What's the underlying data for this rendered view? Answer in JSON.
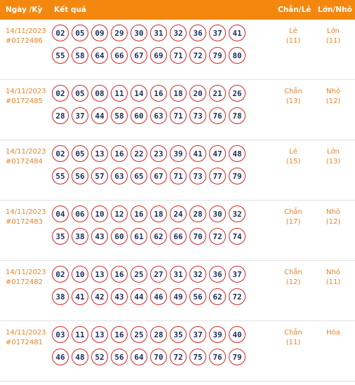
{
  "header": {
    "ky": "Ngày /Kỳ",
    "ket_qua": "Kết quả",
    "chan_le": "Chẵn/Lẻ",
    "lon_nho": "Lớn/Nhỏ"
  },
  "rows": [
    {
      "date": "14/11/2023",
      "draw": "#0172486",
      "balls": [
        "02",
        "05",
        "09",
        "29",
        "30",
        "31",
        "32",
        "36",
        "37",
        "41",
        "55",
        "58",
        "64",
        "66",
        "67",
        "69",
        "71",
        "72",
        "79",
        "80"
      ],
      "chan_le": "Lẻ",
      "chan_le_count": "(11)",
      "lon_nho": "Lớn",
      "lon_nho_count": "(11)"
    },
    {
      "date": "14/11/2023",
      "draw": "#0172485",
      "balls": [
        "02",
        "05",
        "08",
        "11",
        "14",
        "16",
        "18",
        "20",
        "21",
        "26",
        "28",
        "37",
        "44",
        "58",
        "60",
        "63",
        "71",
        "73",
        "76",
        "78"
      ],
      "chan_le": "Chẵn",
      "chan_le_count": "(13)",
      "lon_nho": "Nhỏ",
      "lon_nho_count": "(12)"
    },
    {
      "date": "14/11/2023",
      "draw": "#0172484",
      "balls": [
        "02",
        "05",
        "13",
        "16",
        "22",
        "23",
        "39",
        "41",
        "47",
        "48",
        "55",
        "56",
        "57",
        "63",
        "65",
        "67",
        "71",
        "73",
        "77",
        "79"
      ],
      "chan_le": "Lẻ",
      "chan_le_count": "(15)",
      "lon_nho": "Lớn",
      "lon_nho_count": "(13)"
    },
    {
      "date": "14/11/2023",
      "draw": "#0172483",
      "balls": [
        "04",
        "06",
        "10",
        "12",
        "16",
        "18",
        "24",
        "28",
        "30",
        "32",
        "35",
        "38",
        "43",
        "60",
        "61",
        "62",
        "66",
        "70",
        "72",
        "74"
      ],
      "chan_le": "Chẵn",
      "chan_le_count": "(17)",
      "lon_nho": "Nhỏ",
      "lon_nho_count": "(12)"
    },
    {
      "date": "14/11/2023",
      "draw": "#0172482",
      "balls": [
        "02",
        "10",
        "13",
        "16",
        "25",
        "27",
        "31",
        "32",
        "36",
        "37",
        "38",
        "41",
        "42",
        "43",
        "44",
        "46",
        "49",
        "56",
        "62",
        "72"
      ],
      "chan_le": "Chẵn",
      "chan_le_count": "(12)",
      "lon_nho": "Nhỏ",
      "lon_nho_count": "(11)"
    },
    {
      "date": "14/11/2023",
      "draw": "#0172481",
      "balls": [
        "03",
        "11",
        "13",
        "16",
        "25",
        "28",
        "35",
        "37",
        "39",
        "40",
        "46",
        "48",
        "52",
        "56",
        "64",
        "70",
        "72",
        "75",
        "76",
        "79"
      ],
      "chan_le": "Chẵn",
      "chan_le_count": "(11)",
      "lon_nho": "Hòa",
      "lon_nho_count": ""
    }
  ]
}
